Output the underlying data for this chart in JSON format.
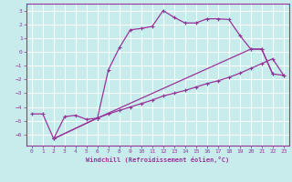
{
  "bg_color": "#c8ecec",
  "grid_color": "#a8d8d8",
  "line_color": "#993399",
  "xlim": [
    -0.5,
    23.5
  ],
  "ylim": [
    -6.8,
    3.5
  ],
  "xticks": [
    0,
    1,
    2,
    3,
    4,
    5,
    6,
    7,
    8,
    9,
    10,
    11,
    12,
    13,
    14,
    15,
    16,
    17,
    18,
    19,
    20,
    21,
    22,
    23
  ],
  "yticks": [
    -6,
    -5,
    -4,
    -3,
    -2,
    -1,
    0,
    1,
    2,
    3
  ],
  "xlabel": "Windchill (Refroidissement éolien,°C)",
  "line1_x": [
    0,
    1,
    2,
    3,
    4,
    5,
    6,
    7,
    8,
    9,
    10,
    11,
    12,
    13,
    14,
    15,
    16,
    17,
    18,
    19,
    20,
    21,
    22
  ],
  "line1_y": [
    -4.5,
    -4.5,
    -6.3,
    -4.7,
    -4.6,
    -4.9,
    -4.8,
    -1.3,
    0.3,
    1.6,
    1.7,
    1.85,
    3.0,
    2.5,
    2.1,
    2.1,
    2.4,
    2.4,
    2.35,
    1.2,
    0.2,
    0.2,
    -1.6
  ],
  "line2_x": [
    2,
    6,
    7,
    8,
    9,
    10,
    11,
    12,
    13,
    14,
    15,
    16,
    17,
    18,
    19,
    20,
    21,
    22,
    23
  ],
  "line2_y": [
    -6.3,
    -4.8,
    -4.5,
    -4.25,
    -4.0,
    -3.75,
    -3.5,
    -3.2,
    -3.0,
    -2.8,
    -2.55,
    -2.3,
    -2.1,
    -1.85,
    -1.55,
    -1.2,
    -0.85,
    -0.5,
    -1.7
  ],
  "line3_x": [
    2,
    6,
    20,
    21,
    22,
    23
  ],
  "line3_y": [
    -6.3,
    -4.8,
    0.2,
    0.2,
    -1.6,
    -1.7
  ]
}
